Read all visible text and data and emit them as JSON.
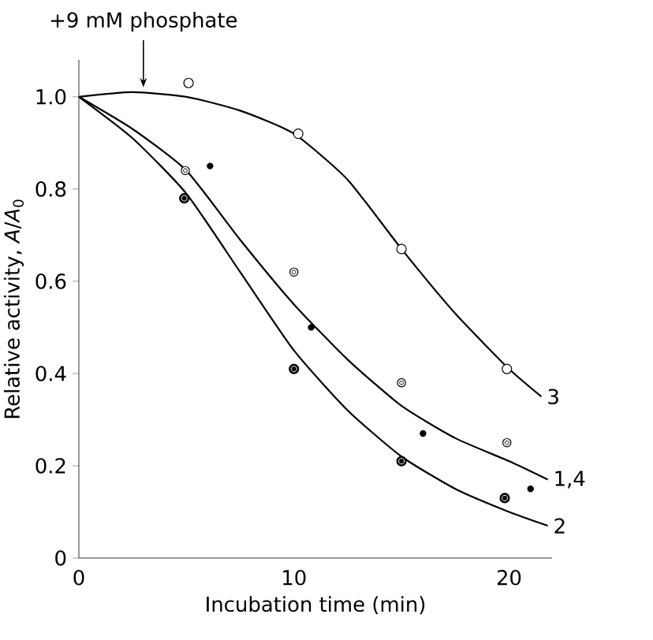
{
  "chart_data": {
    "type": "line",
    "xlabel": "Incubation time (min)",
    "ylabel": "Relative activity, *A*/*A*$_{0}$",
    "xlim": [
      0,
      22
    ],
    "ylim": [
      0,
      1.08
    ],
    "xticks": [
      {
        "value": 0,
        "label": "0"
      },
      {
        "value": 10,
        "label": "10"
      },
      {
        "value": 20,
        "label": "20"
      }
    ],
    "yticks": [
      {
        "value": 0,
        "label": "0"
      },
      {
        "value": 0.2,
        "label": "0.2"
      },
      {
        "value": 0.4,
        "label": "0.4"
      },
      {
        "value": 0.6,
        "label": "0.6"
      },
      {
        "value": 0.8,
        "label": "0.8"
      },
      {
        "value": 1.0,
        "label": "1.0"
      }
    ],
    "annotations": [
      "+9 mM phosphate"
    ],
    "series": [
      {
        "name": "3",
        "color": "#000000",
        "marker": "none",
        "x": [
          0,
          2.5,
          5,
          7.5,
          10,
          12.5,
          15,
          17.5,
          20,
          21.5
        ],
        "values": [
          1.0,
          1.01,
          1.0,
          0.97,
          0.92,
          0.82,
          0.67,
          0.53,
          0.41,
          0.35
        ]
      },
      {
        "name": "1,4",
        "color": "#000000",
        "marker": "none",
        "x": [
          0,
          2.5,
          5,
          7.5,
          10,
          12.5,
          15,
          17.5,
          20,
          21.8
        ],
        "values": [
          1.0,
          0.93,
          0.84,
          0.69,
          0.55,
          0.43,
          0.33,
          0.26,
          0.21,
          0.17
        ]
      },
      {
        "name": "2",
        "color": "#000000",
        "marker": "none",
        "x": [
          0,
          2.5,
          5,
          7.5,
          10,
          12.5,
          15,
          17.5,
          20,
          21.8
        ],
        "values": [
          1.0,
          0.91,
          0.79,
          0.62,
          0.45,
          0.32,
          0.22,
          0.15,
          0.1,
          0.07
        ]
      },
      {
        "type": "scatter",
        "color": "#000000",
        "marker": "circle",
        "x": [
          5.1,
          10.2,
          15,
          19.9
        ],
        "values": [
          1.03,
          0.92,
          0.67,
          0.41
        ]
      },
      {
        "type": "scatter",
        "color": "#000000",
        "marker": "circle",
        "x": [
          4.95,
          10,
          15,
          19.9
        ],
        "values": [
          0.84,
          0.62,
          0.38,
          0.25
        ]
      },
      {
        "type": "scatter",
        "color": "#000000",
        "marker": "circle",
        "x": [
          6.1,
          10.8,
          16,
          21
        ],
        "values": [
          0.85,
          0.5,
          0.27,
          0.15
        ]
      },
      {
        "type": "scatter",
        "color": "#000000",
        "marker": "circle",
        "x": [
          4.9,
          10,
          15,
          19.8
        ],
        "values": [
          0.78,
          0.41,
          0.21,
          0.13
        ]
      }
    ]
  }
}
